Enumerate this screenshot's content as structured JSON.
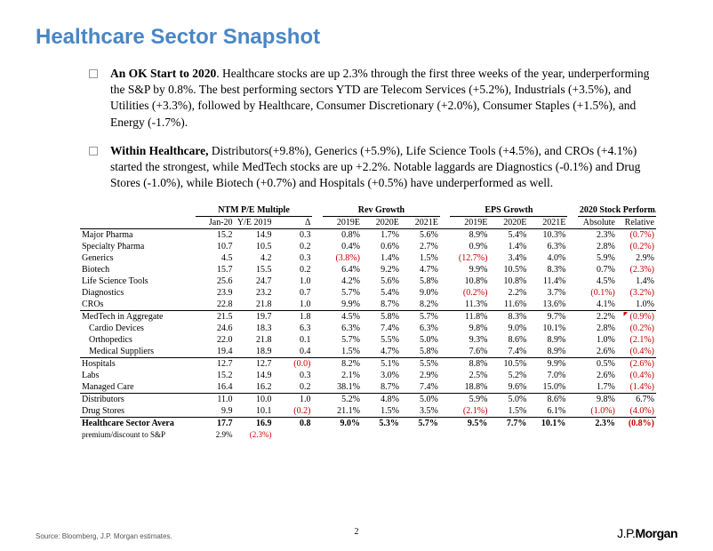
{
  "title": "Healthcare Sector Snapshot",
  "bullets": [
    {
      "lead": "An OK Start to 2020",
      "rest": ". Healthcare stocks are up 2.3% through the first three weeks of the year, underperforming the S&P by 0.8%. The best performing sectors YTD are Telecom Services (+5.2%), Industrials (+3.5%), and Utilities (+3.3%), followed by Healthcare, Consumer Discretionary (+2.0%), Consumer Staples (+1.5%), and Energy (-1.7%)."
    },
    {
      "lead": "Within Healthcare,",
      "rest": " Distributors(+9.8%), Generics (+5.9%), Life Science Tools (+4.5%), and CROs (+4.1%) started the strongest, while MedTech stocks are up +2.2%. Notable laggards are Diagnostics (-0.1%) and Drug Stores (-1.0%), while Biotech (+0.7%) and Hospitals (+0.5%) have underperformed as well."
    }
  ],
  "groups": [
    "NTM P/E Multiple",
    "Rev Growth",
    "EPS Growth",
    "2020 Stock Perform."
  ],
  "cols": [
    "Jan-20",
    "Y/E 2019",
    "Δ",
    "2019E",
    "2020E",
    "2021E",
    "2019E",
    "2020E",
    "2021E",
    "Absolute",
    "Relative"
  ],
  "blocks": [
    [
      {
        "n": "Major Pharma",
        "v": [
          "15.2",
          "14.9",
          "0.3",
          "0.8%",
          "1.7%",
          "5.6%",
          "8.9%",
          "5.4%",
          "10.3%",
          "2.3%",
          "(0.7%)"
        ]
      },
      {
        "n": "Specialty Pharma",
        "v": [
          "10.7",
          "10.5",
          "0.2",
          "0.4%",
          "0.6%",
          "2.7%",
          "0.9%",
          "1.4%",
          "6.3%",
          "2.8%",
          "(0.2%)"
        ]
      },
      {
        "n": "Generics",
        "v": [
          "4.5",
          "4.2",
          "0.3",
          "(3.8%)",
          "1.4%",
          "1.5%",
          "(12.7%)",
          "3.4%",
          "4.0%",
          "5.9%",
          "2.9%"
        ]
      },
      {
        "n": "Biotech",
        "v": [
          "15.7",
          "15.5",
          "0.2",
          "6.4%",
          "9.2%",
          "4.7%",
          "9.9%",
          "10.5%",
          "8.3%",
          "0.7%",
          "(2.3%)"
        ]
      },
      {
        "n": "Life Science Tools",
        "v": [
          "25.6",
          "24.7",
          "1.0",
          "4.2%",
          "5.6%",
          "5.8%",
          "10.8%",
          "10.8%",
          "11.4%",
          "4.5%",
          "1.4%"
        ]
      },
      {
        "n": "Diagnostics",
        "v": [
          "23.9",
          "23.2",
          "0.7",
          "5.7%",
          "5.4%",
          "9.0%",
          "(0.2%)",
          "2.2%",
          "3.7%",
          "(0.1%)",
          "(3.2%)"
        ]
      },
      {
        "n": "CROs",
        "v": [
          "22.8",
          "21.8",
          "1.0",
          "9.9%",
          "8.7%",
          "8.2%",
          "11.3%",
          "11.6%",
          "13.6%",
          "4.1%",
          "1.0%"
        ]
      }
    ],
    [
      {
        "n": "MedTech in Aggregate",
        "v": [
          "21.5",
          "19.7",
          "1.8",
          "4.5%",
          "5.8%",
          "5.7%",
          "11.8%",
          "8.3%",
          "9.7%",
          "2.2%",
          "(0.9%)"
        ],
        "tri": true
      },
      {
        "n": "Cardio Devices",
        "v": [
          "24.6",
          "18.3",
          "6.3",
          "6.3%",
          "7.4%",
          "6.3%",
          "9.8%",
          "9.0%",
          "10.1%",
          "2.8%",
          "(0.2%)"
        ],
        "ind": true
      },
      {
        "n": "Orthopedics",
        "v": [
          "22.0",
          "21.8",
          "0.1",
          "5.7%",
          "5.5%",
          "5.0%",
          "9.3%",
          "8.6%",
          "8.9%",
          "1.0%",
          "(2.1%)"
        ],
        "ind": true
      },
      {
        "n": "Medical Suppliers",
        "v": [
          "19.4",
          "18.9",
          "0.4",
          "1.5%",
          "4.7%",
          "5.8%",
          "7.6%",
          "7.4%",
          "8.9%",
          "2.6%",
          "(0.4%)"
        ],
        "ind": true
      }
    ],
    [
      {
        "n": "Hospitals",
        "v": [
          "12.7",
          "12.7",
          "(0.0)",
          "8.2%",
          "5.1%",
          "5.5%",
          "8.8%",
          "10.5%",
          "9.9%",
          "0.5%",
          "(2.6%)"
        ]
      },
      {
        "n": "Labs",
        "v": [
          "15.2",
          "14.9",
          "0.3",
          "2.1%",
          "3.0%",
          "2.9%",
          "2.5%",
          "5.2%",
          "7.0%",
          "2.6%",
          "(0.4%)"
        ]
      },
      {
        "n": "Managed Care",
        "v": [
          "16.4",
          "16.2",
          "0.2",
          "38.1%",
          "8.7%",
          "7.4%",
          "18.8%",
          "9.6%",
          "15.0%",
          "1.7%",
          "(1.4%)"
        ]
      }
    ],
    [
      {
        "n": "Distributors",
        "v": [
          "11.0",
          "10.0",
          "1.0",
          "5.2%",
          "4.8%",
          "5.0%",
          "5.9%",
          "5.0%",
          "8.6%",
          "9.8%",
          "6.7%"
        ]
      },
      {
        "n": "Drug Stores",
        "v": [
          "9.9",
          "10.1",
          "(0.2)",
          "21.1%",
          "1.5%",
          "3.5%",
          "(2.1%)",
          "1.5%",
          "6.1%",
          "(1.0%)",
          "(4.0%)"
        ]
      }
    ]
  ],
  "total": {
    "n": "Healthcare Sector Avera",
    "v": [
      "17.7",
      "16.9",
      "0.8",
      "9.0%",
      "5.3%",
      "5.7%",
      "9.5%",
      "7.7%",
      "10.1%",
      "2.3%",
      "(0.8%)"
    ]
  },
  "premium": {
    "n": "premium/discount to S&P",
    "v": [
      "2.9%",
      "(2.3%)",
      "",
      "",
      "",
      "",
      "",
      "",
      "",
      "",
      ""
    ]
  },
  "page": "2",
  "source": "Source: Bloomberg, J.P. Morgan estimates.",
  "brand1": "J.P.",
  "brand2": "Morgan"
}
